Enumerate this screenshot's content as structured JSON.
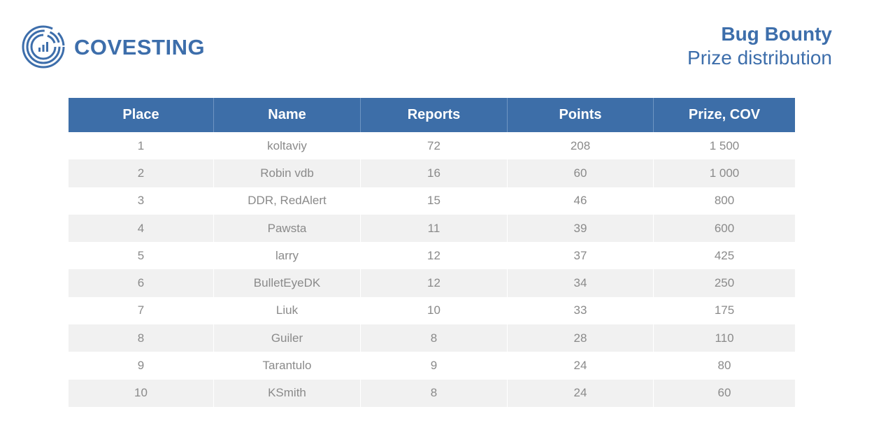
{
  "logo": {
    "text": "COVESTING"
  },
  "header": {
    "title": "Bug Bounty",
    "subtitle": "Prize distribution"
  },
  "table": {
    "columns": [
      "Place",
      "Name",
      "Reports",
      "Points",
      "Prize, COV"
    ],
    "rows": [
      [
        "1",
        "koltaviy",
        "72",
        "208",
        "1 500"
      ],
      [
        "2",
        "Robin vdb",
        "16",
        "60",
        "1 000"
      ],
      [
        "3",
        "DDR, RedAlert",
        "15",
        "46",
        "800"
      ],
      [
        "4",
        "Pawsta",
        "11",
        "39",
        "600"
      ],
      [
        "5",
        "larry",
        "12",
        "37",
        "425"
      ],
      [
        "6",
        "BulletEyeDK",
        "12",
        "34",
        "250"
      ],
      [
        "7",
        "Liuk",
        "10",
        "33",
        "175"
      ],
      [
        "8",
        "Guiler",
        "8",
        "28",
        "110"
      ],
      [
        "9",
        "Tarantulo",
        "9",
        "24",
        "80"
      ],
      [
        "10",
        "KSmith",
        "8",
        "24",
        "60"
      ]
    ]
  }
}
